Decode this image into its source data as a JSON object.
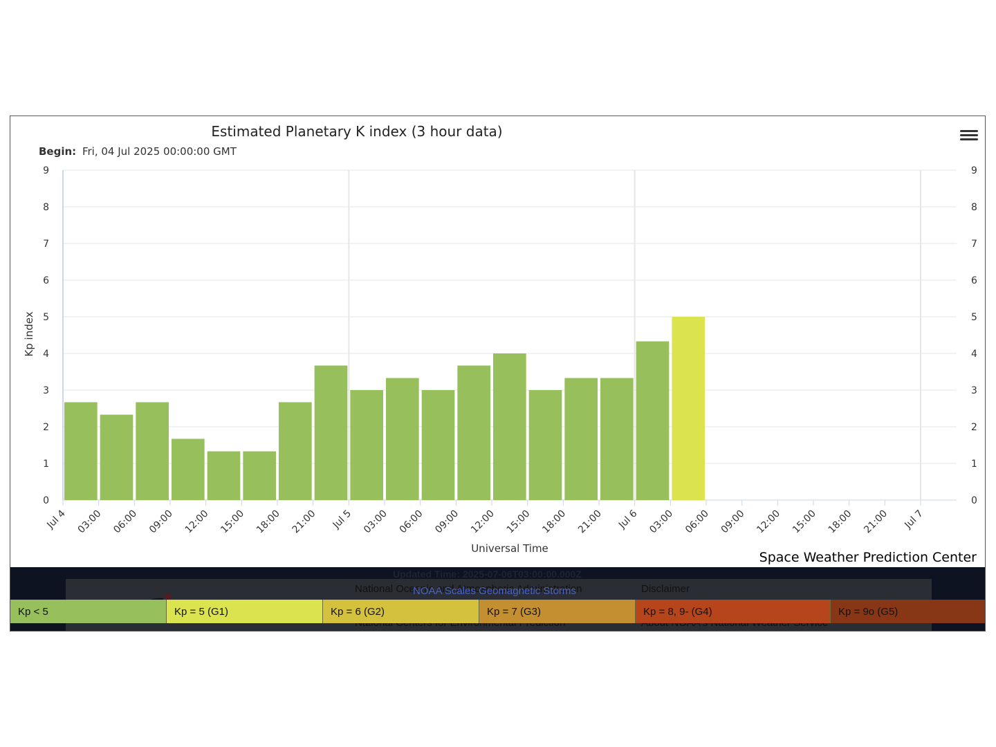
{
  "chart_data": {
    "type": "bar",
    "title": "Estimated Planetary K index (3 hour data)",
    "subtitle_label": "Begin:",
    "subtitle_value": "Fri, 04 Jul 2025 00:00:00 GMT",
    "xlabel": "Universal Time",
    "ylabel": "Kp index",
    "ylim": [
      0,
      9
    ],
    "yticks": [
      "0",
      "1",
      "2",
      "3",
      "4",
      "5",
      "6",
      "7",
      "8",
      "9"
    ],
    "grid": true,
    "x_range_hours": [
      0,
      72
    ],
    "xticks": [
      {
        "h": 0,
        "label": "Jul 4"
      },
      {
        "h": 3,
        "label": "03:00"
      },
      {
        "h": 6,
        "label": "06:00"
      },
      {
        "h": 9,
        "label": "09:00"
      },
      {
        "h": 12,
        "label": "12:00"
      },
      {
        "h": 15,
        "label": "15:00"
      },
      {
        "h": 18,
        "label": "18:00"
      },
      {
        "h": 21,
        "label": "21:00"
      },
      {
        "h": 24,
        "label": "Jul 5"
      },
      {
        "h": 27,
        "label": "03:00"
      },
      {
        "h": 30,
        "label": "06:00"
      },
      {
        "h": 33,
        "label": "09:00"
      },
      {
        "h": 36,
        "label": "12:00"
      },
      {
        "h": 39,
        "label": "15:00"
      },
      {
        "h": 42,
        "label": "18:00"
      },
      {
        "h": 45,
        "label": "21:00"
      },
      {
        "h": 48,
        "label": "Jul 6"
      },
      {
        "h": 51,
        "label": "03:00"
      },
      {
        "h": 54,
        "label": "06:00"
      },
      {
        "h": 57,
        "label": "09:00"
      },
      {
        "h": 60,
        "label": "12:00"
      },
      {
        "h": 63,
        "label": "15:00"
      },
      {
        "h": 66,
        "label": "18:00"
      },
      {
        "h": 69,
        "label": "21:00"
      },
      {
        "h": 72,
        "label": "Jul 7"
      }
    ],
    "bars": [
      {
        "start": "Jul 4 00:00",
        "kp": 2.67,
        "color": "#97bf5b"
      },
      {
        "start": "Jul 4 03:00",
        "kp": 2.33,
        "color": "#97bf5b"
      },
      {
        "start": "Jul 4 06:00",
        "kp": 2.67,
        "color": "#97bf5b"
      },
      {
        "start": "Jul 4 09:00",
        "kp": 1.67,
        "color": "#97bf5b"
      },
      {
        "start": "Jul 4 12:00",
        "kp": 1.33,
        "color": "#97bf5b"
      },
      {
        "start": "Jul 4 15:00",
        "kp": 1.33,
        "color": "#97bf5b"
      },
      {
        "start": "Jul 4 18:00",
        "kp": 2.67,
        "color": "#97bf5b"
      },
      {
        "start": "Jul 4 21:00",
        "kp": 3.67,
        "color": "#97bf5b"
      },
      {
        "start": "Jul 5 00:00",
        "kp": 3.0,
        "color": "#97bf5b"
      },
      {
        "start": "Jul 5 03:00",
        "kp": 3.33,
        "color": "#97bf5b"
      },
      {
        "start": "Jul 5 06:00",
        "kp": 3.0,
        "color": "#97bf5b"
      },
      {
        "start": "Jul 5 09:00",
        "kp": 3.67,
        "color": "#97bf5b"
      },
      {
        "start": "Jul 5 12:00",
        "kp": 4.0,
        "color": "#97bf5b"
      },
      {
        "start": "Jul 5 15:00",
        "kp": 3.0,
        "color": "#97bf5b"
      },
      {
        "start": "Jul 5 18:00",
        "kp": 3.33,
        "color": "#97bf5b"
      },
      {
        "start": "Jul 5 21:00",
        "kp": 3.33,
        "color": "#97bf5b"
      },
      {
        "start": "Jul 6 00:00",
        "kp": 4.33,
        "color": "#97bf5b"
      },
      {
        "start": "Jul 6 03:00",
        "kp": 5.0,
        "color": "#dbe44e"
      }
    ]
  },
  "credit": "Space Weather Prediction Center",
  "footer": {
    "updated": "Updated Time: 2025-07-06T03:00:00.000Z",
    "scales_link": "NOAA Scales Geomagnetic Storms",
    "ghost_1": "National Oceanic and Atmospheric Administration",
    "ghost_2": "Disclaimer",
    "ghost_3": "National Centers for Environmental Prediction",
    "ghost_4": "About NOAA's National Weather Service"
  },
  "legend": [
    {
      "label": "Kp < 5",
      "color": "#97bf5b"
    },
    {
      "label": "Kp = 5 (G1)",
      "color": "#dbe44e"
    },
    {
      "label": "Kp = 6 (G2)",
      "color": "#d4c13d"
    },
    {
      "label": "Kp = 7 (G3)",
      "color": "#c38f30"
    },
    {
      "label": "Kp = 8, 9- (G4)",
      "color": "#b6451c"
    },
    {
      "label": "Kp = 9o (G5)",
      "color": "#883716"
    }
  ]
}
